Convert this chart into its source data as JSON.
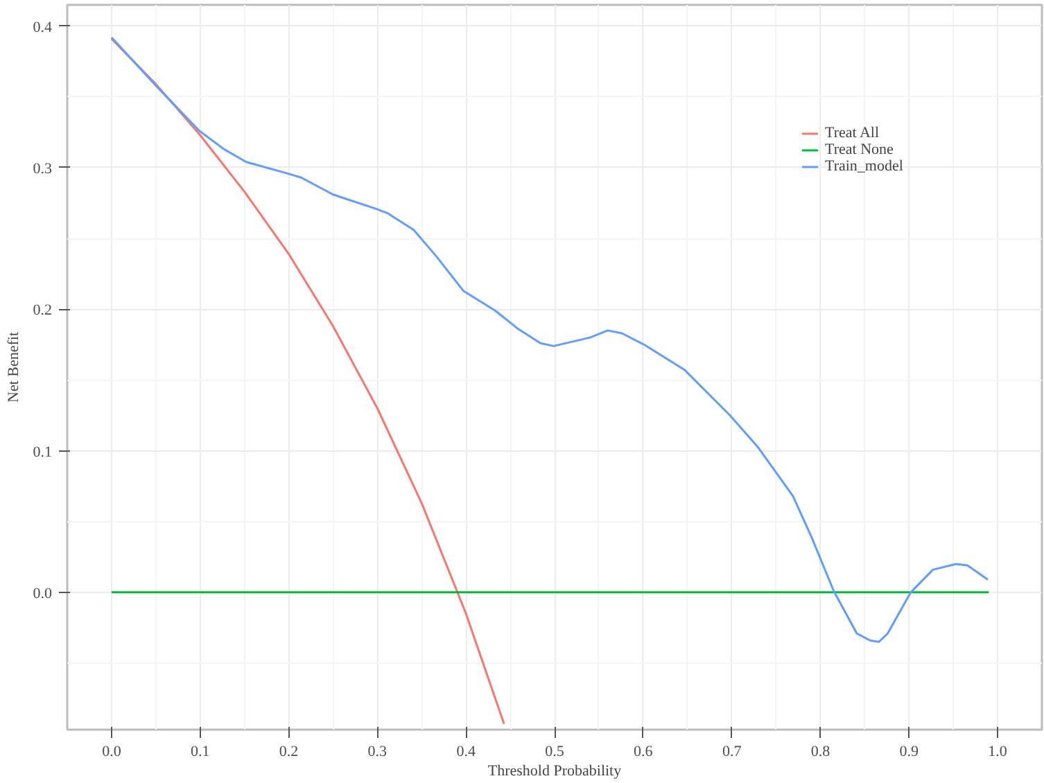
{
  "chart_data": {
    "type": "line",
    "xlabel": "Threshold Probability",
    "ylabel": "Net Benefit",
    "xlim": [
      -0.05,
      1.05
    ],
    "ylim": [
      -0.097,
      0.415
    ],
    "xticks": [
      {
        "value": 0,
        "label": "0.0"
      },
      0.1,
      0.2,
      0.3,
      0.4,
      0.5,
      0.6,
      0.7,
      0.8,
      0.9,
      {
        "value": 1,
        "label": "1.0"
      }
    ],
    "yticks": [
      {
        "value": 0,
        "label": "0.0"
      },
      0.1,
      0.2,
      0.3,
      0.4
    ],
    "grid": true,
    "legend": "top right",
    "line_style": "solid",
    "marker": "none",
    "series": [
      {
        "name": "Treat All",
        "color": "#f8766d",
        "x": [
          0,
          0.05,
          0.1,
          0.15,
          0.2,
          0.25,
          0.3,
          0.35,
          0.4,
          0.443
        ],
        "values": [
          0.391,
          0.359,
          0.323,
          0.283,
          0.239,
          0.188,
          0.13,
          0.063,
          -0.015,
          -0.093
        ]
      },
      {
        "name": "Treat None",
        "color": "#00ba38",
        "x": [
          0,
          0.99
        ],
        "values": [
          0,
          0
        ]
      },
      {
        "name": "Train_model",
        "color": "#619cff",
        "x": [
          0,
          0.05,
          0.099,
          0.127,
          0.152,
          0.198,
          0.214,
          0.25,
          0.298,
          0.311,
          0.341,
          0.367,
          0.397,
          0.433,
          0.459,
          0.484,
          0.499,
          0.54,
          0.56,
          0.576,
          0.601,
          0.647,
          0.698,
          0.729,
          0.769,
          0.79,
          0.815,
          0.841,
          0.856,
          0.866,
          0.876,
          0.902,
          0.927,
          0.953,
          0.966,
          0.989
        ],
        "values": [
          0.392,
          0.358,
          0.326,
          0.313,
          0.304,
          0.296,
          0.293,
          0.281,
          0.271,
          0.268,
          0.256,
          0.237,
          0.213,
          0.199,
          0.186,
          0.176,
          0.174,
          0.18,
          0.185,
          0.183,
          0.175,
          0.157,
          0.125,
          0.103,
          0.068,
          0.039,
          0.001,
          -0.029,
          -0.034,
          -0.035,
          -0.029,
          0.0,
          0.016,
          0.02,
          0.019,
          0.009
        ]
      }
    ]
  }
}
